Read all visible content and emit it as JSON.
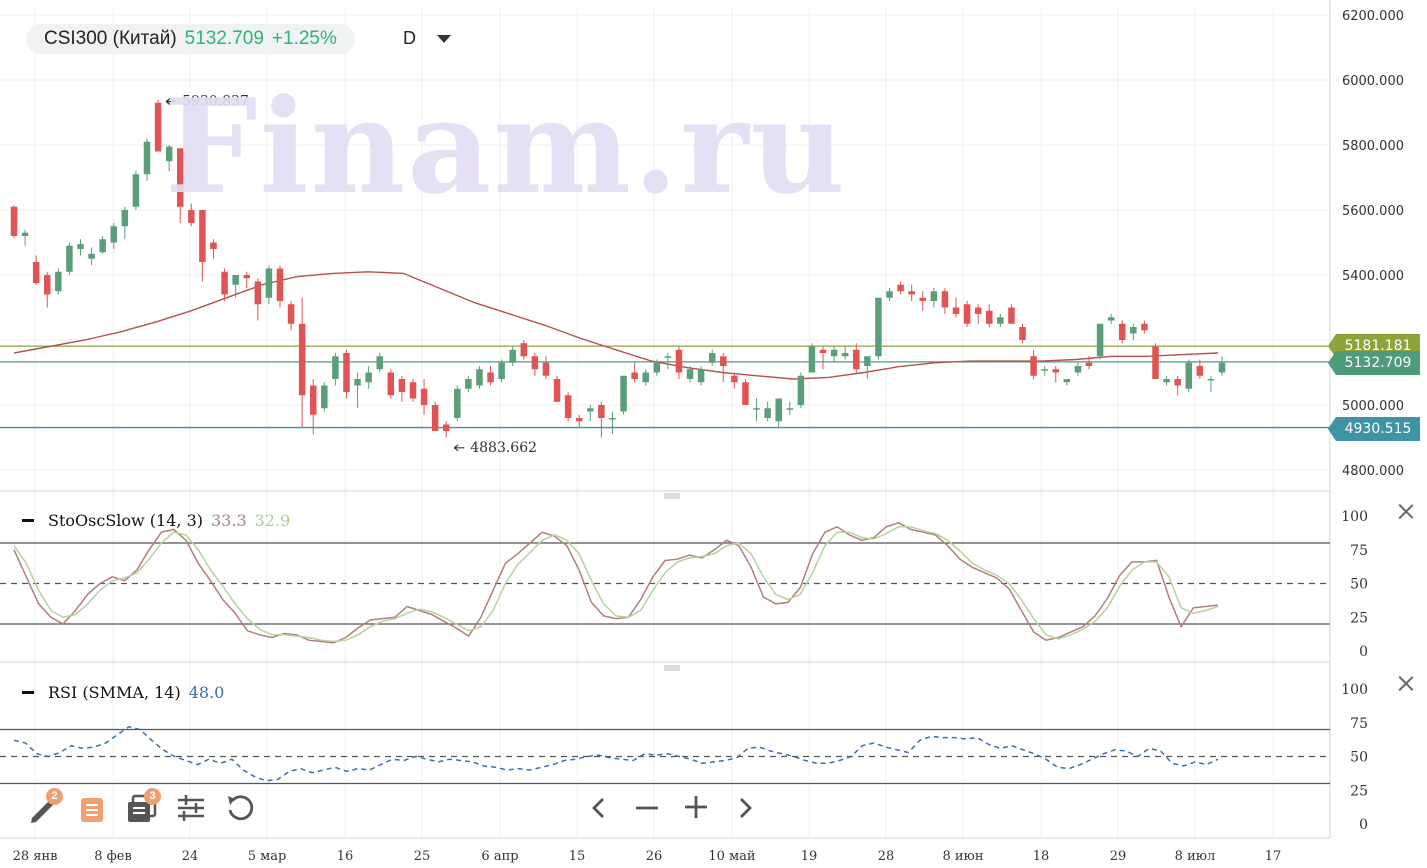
{
  "header": {
    "symbol": "CSI300 (Китай)",
    "price": "5132.709",
    "change": "+1.25%",
    "period": "D"
  },
  "watermark": "Finam.ru",
  "colors": {
    "up": "#5a9f7a",
    "down": "#e05455",
    "ma": "#b5524f",
    "level_upper": "#8ea33a",
    "level_mid": "#4d9b7a",
    "level_low": "#3f93a5",
    "stoch_k": "#b07f7f",
    "stoch_d": "#b5d39a",
    "rsi": "#3a6fb0"
  },
  "chart_data": [
    {
      "type": "candlestick",
      "title": "CSI300 (Китай)",
      "x_ticks": [
        "28 янв",
        "8 фев",
        "24",
        "5 мар",
        "16",
        "25",
        "6 апр",
        "15",
        "26",
        "10 май",
        "19",
        "28",
        "8 июн",
        "18",
        "29",
        "8 июл",
        "17"
      ],
      "y_ticks": [
        "6200.000",
        "6000.000",
        "5800.000",
        "5600.000",
        "5400.000",
        "5200.000",
        "5000.000",
        "4800.000"
      ],
      "ylim": [
        4740,
        6210
      ],
      "ohlc": [
        [
          5610,
          5615,
          5515,
          5520
        ],
        [
          5520,
          5540,
          5490,
          5530
        ],
        [
          5440,
          5460,
          5370,
          5375
        ],
        [
          5400,
          5410,
          5300,
          5340
        ],
        [
          5350,
          5420,
          5340,
          5410
        ],
        [
          5410,
          5500,
          5400,
          5490
        ],
        [
          5480,
          5510,
          5460,
          5495
        ],
        [
          5450,
          5485,
          5430,
          5465
        ],
        [
          5470,
          5520,
          5465,
          5510
        ],
        [
          5500,
          5560,
          5480,
          5550
        ],
        [
          5550,
          5610,
          5510,
          5600
        ],
        [
          5610,
          5720,
          5600,
          5710
        ],
        [
          5710,
          5820,
          5690,
          5810
        ],
        [
          5930,
          5940,
          5780,
          5780
        ],
        [
          5750,
          5800,
          5720,
          5795
        ],
        [
          5790,
          5790,
          5560,
          5610
        ],
        [
          5600,
          5620,
          5550,
          5560
        ],
        [
          5600,
          5600,
          5380,
          5440
        ],
        [
          5500,
          5510,
          5450,
          5480
        ],
        [
          5410,
          5420,
          5320,
          5340
        ],
        [
          5370,
          5400,
          5330,
          5400
        ],
        [
          5400,
          5410,
          5360,
          5390
        ],
        [
          5380,
          5390,
          5260,
          5310
        ],
        [
          5330,
          5430,
          5310,
          5420
        ],
        [
          5420,
          5430,
          5300,
          5320
        ],
        [
          5310,
          5320,
          5230,
          5250
        ],
        [
          5250,
          5330,
          4930,
          5030
        ],
        [
          5060,
          5080,
          4910,
          4970
        ],
        [
          4990,
          5070,
          4980,
          5060
        ],
        [
          5080,
          5160,
          5060,
          5150
        ],
        [
          5160,
          5170,
          5020,
          5040
        ],
        [
          5060,
          5100,
          4990,
          5080
        ],
        [
          5070,
          5120,
          5050,
          5100
        ],
        [
          5110,
          5160,
          5100,
          5150
        ],
        [
          5100,
          5110,
          5020,
          5030
        ],
        [
          5080,
          5090,
          5010,
          5040
        ],
        [
          5070,
          5080,
          5010,
          5020
        ],
        [
          5050,
          5080,
          4970,
          5000
        ],
        [
          5000,
          5010,
          4920,
          4920
        ],
        [
          4940,
          4950,
          4900,
          4920
        ],
        [
          4960,
          5060,
          4950,
          5050
        ],
        [
          5050,
          5090,
          5040,
          5080
        ],
        [
          5060,
          5120,
          5050,
          5110
        ],
        [
          5100,
          5120,
          5060,
          5070
        ],
        [
          5080,
          5140,
          5070,
          5130
        ],
        [
          5130,
          5180,
          5120,
          5170
        ],
        [
          5190,
          5200,
          5140,
          5150
        ],
        [
          5150,
          5160,
          5090,
          5110
        ],
        [
          5130,
          5150,
          5080,
          5090
        ],
        [
          5080,
          5090,
          5010,
          5010
        ],
        [
          5030,
          5040,
          4950,
          4960
        ],
        [
          4960,
          4970,
          4930,
          4950
        ],
        [
          4980,
          5000,
          4950,
          4990
        ],
        [
          5000,
          5010,
          4900,
          4960
        ],
        [
          4960,
          4980,
          4910,
          4960
        ],
        [
          4980,
          5090,
          4970,
          5090
        ],
        [
          5100,
          5130,
          5070,
          5080
        ],
        [
          5070,
          5110,
          5060,
          5100
        ],
        [
          5100,
          5140,
          5090,
          5130
        ],
        [
          5150,
          5160,
          5110,
          5150
        ],
        [
          5170,
          5180,
          5080,
          5100
        ],
        [
          5080,
          5120,
          5070,
          5110
        ],
        [
          5070,
          5120,
          5060,
          5110
        ],
        [
          5130,
          5170,
          5120,
          5160
        ],
        [
          5150,
          5160,
          5070,
          5120
        ],
        [
          5090,
          5100,
          5050,
          5070
        ],
        [
          5070,
          5080,
          5000,
          5000
        ],
        [
          4990,
          5020,
          4950,
          4990
        ],
        [
          4960,
          5010,
          4950,
          4990
        ],
        [
          4950,
          5020,
          4930,
          5020
        ],
        [
          4990,
          5010,
          4970,
          4990
        ],
        [
          5000,
          5100,
          4990,
          5090
        ],
        [
          5100,
          5190,
          5100,
          5180
        ],
        [
          5170,
          5180,
          5110,
          5160
        ],
        [
          5150,
          5180,
          5130,
          5170
        ],
        [
          5150,
          5180,
          5140,
          5160
        ],
        [
          5170,
          5190,
          5100,
          5110
        ],
        [
          5120,
          5150,
          5080,
          5150
        ],
        [
          5150,
          5330,
          5140,
          5330
        ],
        [
          5330,
          5360,
          5320,
          5350
        ],
        [
          5370,
          5380,
          5340,
          5350
        ],
        [
          5350,
          5370,
          5320,
          5340
        ],
        [
          5330,
          5350,
          5290,
          5320
        ],
        [
          5320,
          5360,
          5300,
          5350
        ],
        [
          5350,
          5360,
          5280,
          5300
        ],
        [
          5300,
          5330,
          5270,
          5280
        ],
        [
          5310,
          5320,
          5240,
          5250
        ],
        [
          5300,
          5310,
          5250,
          5280
        ],
        [
          5290,
          5310,
          5240,
          5250
        ],
        [
          5250,
          5280,
          5240,
          5270
        ],
        [
          5300,
          5310,
          5250,
          5250
        ],
        [
          5240,
          5250,
          5190,
          5200
        ],
        [
          5150,
          5170,
          5080,
          5090
        ],
        [
          5110,
          5120,
          5090,
          5110
        ],
        [
          5110,
          5120,
          5070,
          5100
        ],
        [
          5070,
          5080,
          5060,
          5080
        ],
        [
          5100,
          5130,
          5090,
          5120
        ],
        [
          5130,
          5150,
          5110,
          5120
        ],
        [
          5150,
          5250,
          5140,
          5250
        ],
        [
          5260,
          5280,
          5250,
          5270
        ],
        [
          5250,
          5260,
          5190,
          5200
        ],
        [
          5220,
          5250,
          5200,
          5240
        ],
        [
          5250,
          5260,
          5220,
          5230
        ],
        [
          5180,
          5190,
          5080,
          5080
        ],
        [
          5070,
          5090,
          5060,
          5080
        ],
        [
          5080,
          5090,
          5030,
          5060
        ],
        [
          5050,
          5140,
          5040,
          5130
        ],
        [
          5120,
          5140,
          5080,
          5090
        ],
        [
          5080,
          5090,
          5040,
          5080
        ],
        [
          5100,
          5150,
          5090,
          5130
        ]
      ],
      "ma": [
        5160,
        5180,
        5200,
        5225,
        5255,
        5290,
        5330,
        5370,
        5395,
        5405,
        5410,
        5405,
        5360,
        5315,
        5280,
        5245,
        5205,
        5170,
        5135,
        5115,
        5100,
        5090,
        5080,
        5085,
        5100,
        5118,
        5130,
        5135,
        5135,
        5135,
        5140,
        5150,
        5150,
        5155,
        5160
      ],
      "levels": [
        {
          "value": 5181.181,
          "label": "5181.181",
          "color": "#8ea33a"
        },
        {
          "value": 5132.709,
          "label": "5132.709",
          "color": "#4d9b7a"
        },
        {
          "value": 4930.515,
          "label": "4930.515",
          "color": "#3f93a5"
        }
      ],
      "annotations": [
        {
          "value": 5930.837,
          "label": "5930.837",
          "index": 13,
          "kind": "high"
        },
        {
          "value": 4883.662,
          "label": "4883.662",
          "index": 39,
          "kind": "low"
        }
      ]
    },
    {
      "type": "line",
      "title": "StoOscSlow (14, 3)",
      "ylim": [
        0,
        100
      ],
      "y_ticks": [
        "100",
        "75",
        "50",
        "25",
        "0"
      ],
      "bands": [
        80,
        50,
        20
      ],
      "series": [
        {
          "name": "33.3",
          "values": [
            75,
            55,
            35,
            25,
            20,
            30,
            42,
            50,
            55,
            52,
            60,
            75,
            88,
            90,
            82,
            65,
            52,
            38,
            28,
            15,
            12,
            10,
            13,
            12,
            8,
            7,
            6,
            10,
            17,
            23,
            24,
            25,
            33,
            30,
            27,
            22,
            17,
            11,
            25,
            45,
            65,
            72,
            80,
            88,
            85,
            78,
            60,
            36,
            26,
            24,
            25,
            38,
            55,
            67,
            68,
            71,
            69,
            75,
            82,
            78,
            62,
            40,
            35,
            36,
            47,
            72,
            88,
            92,
            86,
            82,
            84,
            92,
            95,
            90,
            88,
            86,
            78,
            68,
            62,
            58,
            54,
            46,
            30,
            14,
            8,
            10,
            14,
            18,
            26,
            39,
            56,
            66,
            66,
            67,
            40,
            18,
            32,
            33,
            34
          ]
        },
        {
          "name": "32.9",
          "values": [
            78,
            65,
            45,
            30,
            25,
            27,
            35,
            45,
            52,
            54,
            58,
            68,
            80,
            88,
            86,
            75,
            60,
            48,
            35,
            24,
            16,
            12,
            12,
            11,
            10,
            8,
            7,
            8,
            12,
            18,
            22,
            24,
            28,
            31,
            29,
            25,
            20,
            15,
            18,
            30,
            50,
            64,
            73,
            82,
            86,
            82,
            72,
            52,
            35,
            26,
            25,
            30,
            45,
            58,
            66,
            69,
            70,
            72,
            78,
            80,
            72,
            55,
            42,
            38,
            42,
            58,
            78,
            88,
            88,
            84,
            83,
            87,
            92,
            92,
            89,
            87,
            82,
            74,
            65,
            60,
            56,
            50,
            38,
            24,
            12,
            9,
            12,
            16,
            22,
            32,
            48,
            60,
            66,
            66,
            55,
            32,
            28,
            30,
            33
          ]
        }
      ]
    },
    {
      "type": "line",
      "title": "RSI (SMMA, 14)",
      "ylim": [
        0,
        100
      ],
      "y_ticks": [
        "100",
        "75",
        "50",
        "25",
        "0"
      ],
      "bands": [
        70,
        50,
        30
      ],
      "series": [
        {
          "name": "48.0",
          "values": [
            62,
            60,
            52,
            50,
            53,
            58,
            56,
            57,
            60,
            66,
            72,
            70,
            62,
            55,
            50,
            47,
            44,
            48,
            45,
            48,
            40,
            35,
            32,
            33,
            39,
            41,
            38,
            40,
            42,
            39,
            41,
            40,
            44,
            48,
            47,
            50,
            48,
            46,
            48,
            47,
            46,
            43,
            42,
            40,
            41,
            40,
            42,
            44,
            47,
            48,
            50,
            51,
            49,
            48,
            47,
            52,
            51,
            52,
            50,
            48,
            45,
            46,
            47,
            49,
            56,
            57,
            54,
            52,
            50,
            47,
            45,
            45,
            47,
            50,
            58,
            60,
            57,
            55,
            53,
            62,
            65,
            64,
            64,
            63,
            64,
            59,
            56,
            58,
            55,
            52,
            48,
            42,
            41,
            44,
            48,
            52,
            55,
            54,
            50,
            56,
            54,
            45,
            43,
            46,
            44,
            48
          ]
        }
      ]
    }
  ],
  "stoch_title": "StoOscSlow (14, 3)",
  "stoch_k_value": "33.3",
  "stoch_d_value": "32.9",
  "rsi_title": "RSI (SMMA, 14)",
  "rsi_value": "48.0",
  "toolbar": {
    "draw_badge": "2",
    "layers_badge": "3"
  }
}
